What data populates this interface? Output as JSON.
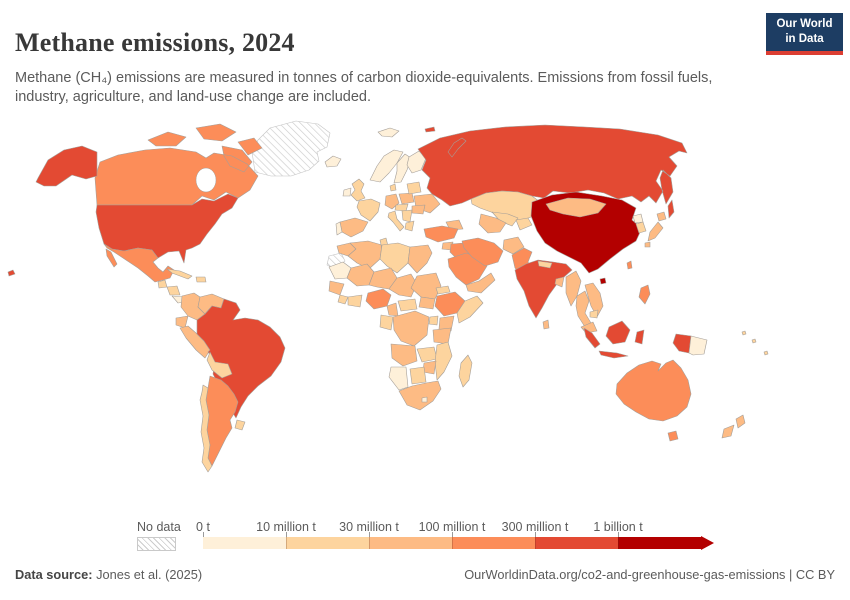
{
  "header": {
    "title": "Methane emissions, 2024",
    "subtitle": "Methane (CH₄) emissions are measured in tonnes of carbon dioxide-equivalents. Emissions from fossil fuels, industry, agriculture, and land-use change are included.",
    "logo": {
      "line1": "Our World",
      "line2": "in Data",
      "bg_color": "#1d3d63",
      "accent_color": "#dc3e32"
    }
  },
  "legend": {
    "no_data_label": "No data",
    "bins": [
      {
        "label": "0 t",
        "color": "#fef0d9"
      },
      {
        "label": "10 million t",
        "color": "#fdd49e"
      },
      {
        "label": "30 million t",
        "color": "#fdbb84"
      },
      {
        "label": "100 million t",
        "color": "#fc8d59"
      },
      {
        "label": "300 million t",
        "color": "#e34a33"
      },
      {
        "label": "1 billion t",
        "color": "#b30000"
      }
    ]
  },
  "footer": {
    "source_label": "Data source:",
    "source_value": "Jones et al. (2025)",
    "attribution": "OurWorldinData.org/co2-and-greenhouse-gas-emissions | CC BY"
  },
  "chart_data": {
    "type": "choropleth",
    "title": "Methane emissions, 2024",
    "unit": "tonnes of CO₂-equivalents",
    "legend_position": "bottom",
    "palette": [
      "#fef0d9",
      "#fdd49e",
      "#fdbb84",
      "#fc8d59",
      "#e34a33",
      "#b30000"
    ],
    "bin_labels": [
      "0–10 million t",
      "10–30 million t",
      "30–100 million t",
      "100–300 million t",
      "300 million–1 billion t",
      "1 billion t and over"
    ],
    "no_data": {
      "label": "No data",
      "countries": [
        "Greenland",
        "Western Sahara"
      ]
    },
    "countries": {
      "China": 6,
      "United States": 5,
      "Russia": 5,
      "Brazil": 5,
      "India": 5,
      "Indonesia": 5,
      "Canada": 4,
      "Mexico": 4,
      "Argentina": 4,
      "Australia": 4,
      "Turkey": 4,
      "Iraq": 4,
      "Iran": 4,
      "Saudi Arabia": 4,
      "Pakistan": 4,
      "Nigeria": 4,
      "Ethiopia": 4,
      "Philippines": 4,
      "Taiwan": 4,
      "Colombia": 3,
      "Venezuela": 3,
      "Peru": 3,
      "Ecuador": 3,
      "Paraguay": 3,
      "Ukraine": 3,
      "Poland": 3,
      "Germany": 3,
      "Romania": 3,
      "Spain": 3,
      "Morocco": 3,
      "Algeria": 3,
      "Mali": 3,
      "Niger": 3,
      "Chad": 3,
      "Sudan": 3,
      "South Sudan": 3,
      "Senegal & Guinea": 3,
      "Cameroon": 3,
      "DR Congo": 3,
      "Kenya": 3,
      "Tanzania": 3,
      "Angola": 3,
      "Zimbabwe": 3,
      "South Africa": 3,
      "Egypt": 3,
      "Myanmar": 3,
      "Thailand": 3,
      "Vietnam & Laos": 3,
      "Malaysia": 3,
      "Bangladesh": 3,
      "Sri Lanka": 3,
      "Japan": 3,
      "New Zealand": 3,
      "Turkmenistan": 3,
      "Afghanistan": 3,
      "Caucasus": 3,
      "Yemen & Oman": 3,
      "Syria": 3,
      "Mongolia": 3,
      "United Kingdom": 2,
      "France": 2,
      "Italy": 2,
      "Balkans": 2,
      "Greece": 2,
      "Central Europe": 2,
      "Baltics & Belarus": 2,
      "Denmark": 2,
      "Cuba": 2,
      "Hispaniola": 2,
      "Guatemala": 2,
      "Honduras & Nicaragua": 2,
      "Bolivia": 2,
      "Chile": 2,
      "Uruguay": 2,
      "Libya": 2,
      "Tunisia": 2,
      "Ghana & Ivory Coast": 2,
      "Sierra Leone & Liberia": 2,
      "Central African Republic": 2,
      "Gabon & Congo": 2,
      "Zambia": 2,
      "Mozambique": 2,
      "Botswana": 2,
      "Madagascar": 2,
      "Somalia": 2,
      "Eritrea & Djibouti": 2,
      "Uganda": 2,
      "South Korea": 2,
      "Kyrgyzstan & Tajikistan": 2,
      "Nepal": 2,
      "Cambodia": 2,
      "Kazakhstan": 2,
      "Uzbekistan": 2,
      "Pacific Islands": 2,
      "Norway": 1,
      "Sweden": 1,
      "Finland": 1,
      "Iceland": 1,
      "Ireland": 1,
      "Portugal": 1,
      "Mauritania": 1,
      "Namibia": 1,
      "Papua New Guinea": 1,
      "North Korea": 1,
      "Costa Rica & Panama": 1,
      "Guyanas": 1,
      "Lesotho": 1,
      "Svalbard": 1
    }
  }
}
